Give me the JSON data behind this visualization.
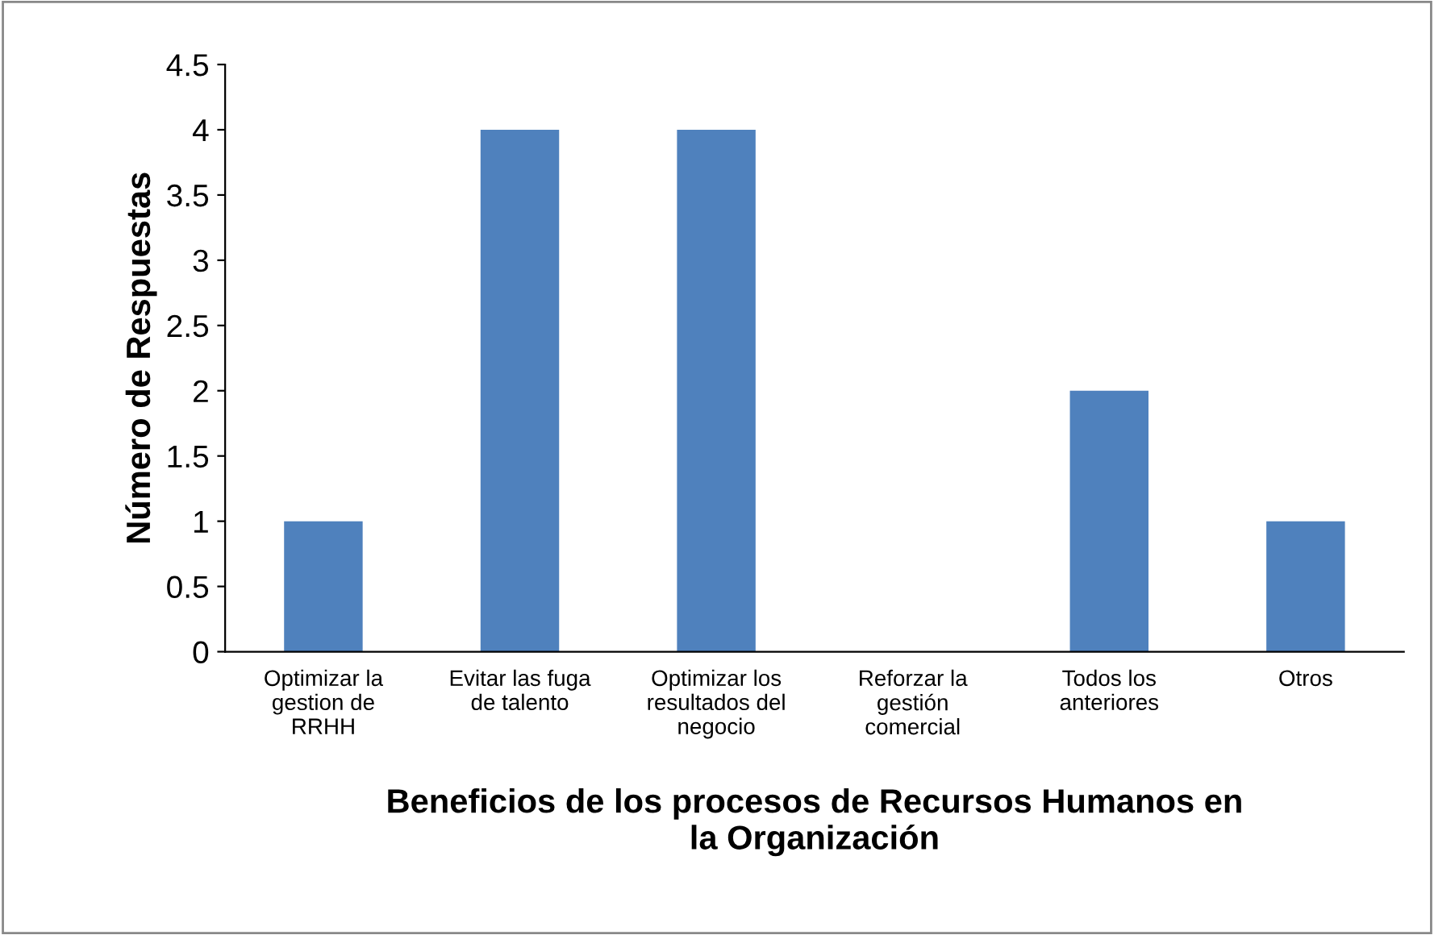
{
  "chart_data": {
    "type": "bar",
    "xlabel": "Beneficios de los procesos de Recursos Humanos en\nla Organización",
    "ylabel": "Número de Respuestas",
    "categories": [
      "Optimizar la\ngestion de\nRRHH",
      "Evitar las fuga\nde talento",
      "Optimizar los\nresultados del\nnegocio",
      "Reforzar la\ngestión\ncomercial",
      "Todos los\nanteriores",
      "Otros"
    ],
    "values": [
      1,
      4,
      4,
      0,
      2,
      1
    ],
    "color": "#4f81bd",
    "ylim": [
      0,
      4.5
    ],
    "yticks": [
      0,
      0.5,
      1,
      1.5,
      2,
      2.5,
      3,
      3.5,
      4,
      4.5
    ],
    "grid": false,
    "legend": false
  }
}
